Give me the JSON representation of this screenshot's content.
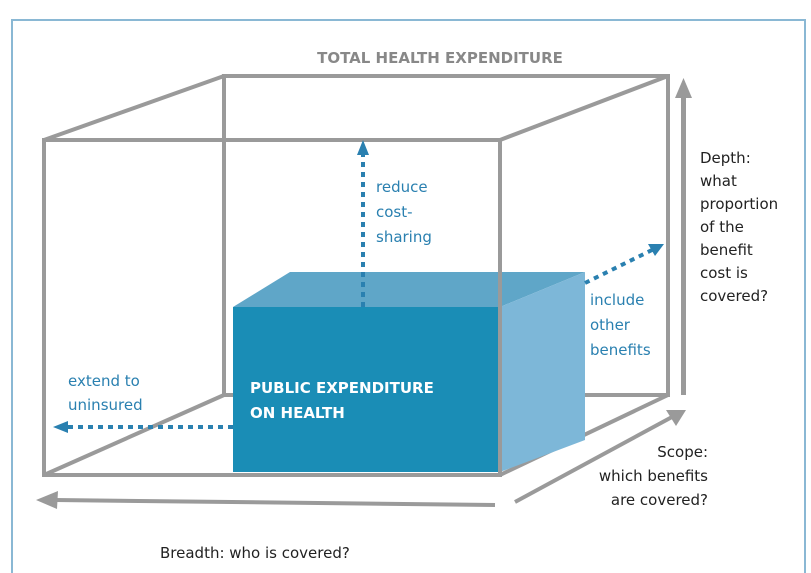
{
  "diagram": {
    "title": "TOTAL HEALTH EXPENDITURE",
    "inner_box": [
      "PUBLIC EXPENDITURE",
      "ON HEALTH"
    ],
    "depth_arrow_note": [
      "reduce",
      "cost-",
      "sharing"
    ],
    "scope_arrow_note": [
      "include",
      "other",
      "benefits"
    ],
    "breadth_arrow_note": [
      "extend to",
      "uninsured"
    ],
    "depth_axis": [
      "Depth:",
      "what",
      "proportion",
      "of the",
      "benefit",
      "cost is",
      "covered?"
    ],
    "scope_axis": [
      "Scope:",
      "which benefits",
      "are covered?"
    ],
    "breadth_axis": "Breadth: who is covered?"
  }
}
